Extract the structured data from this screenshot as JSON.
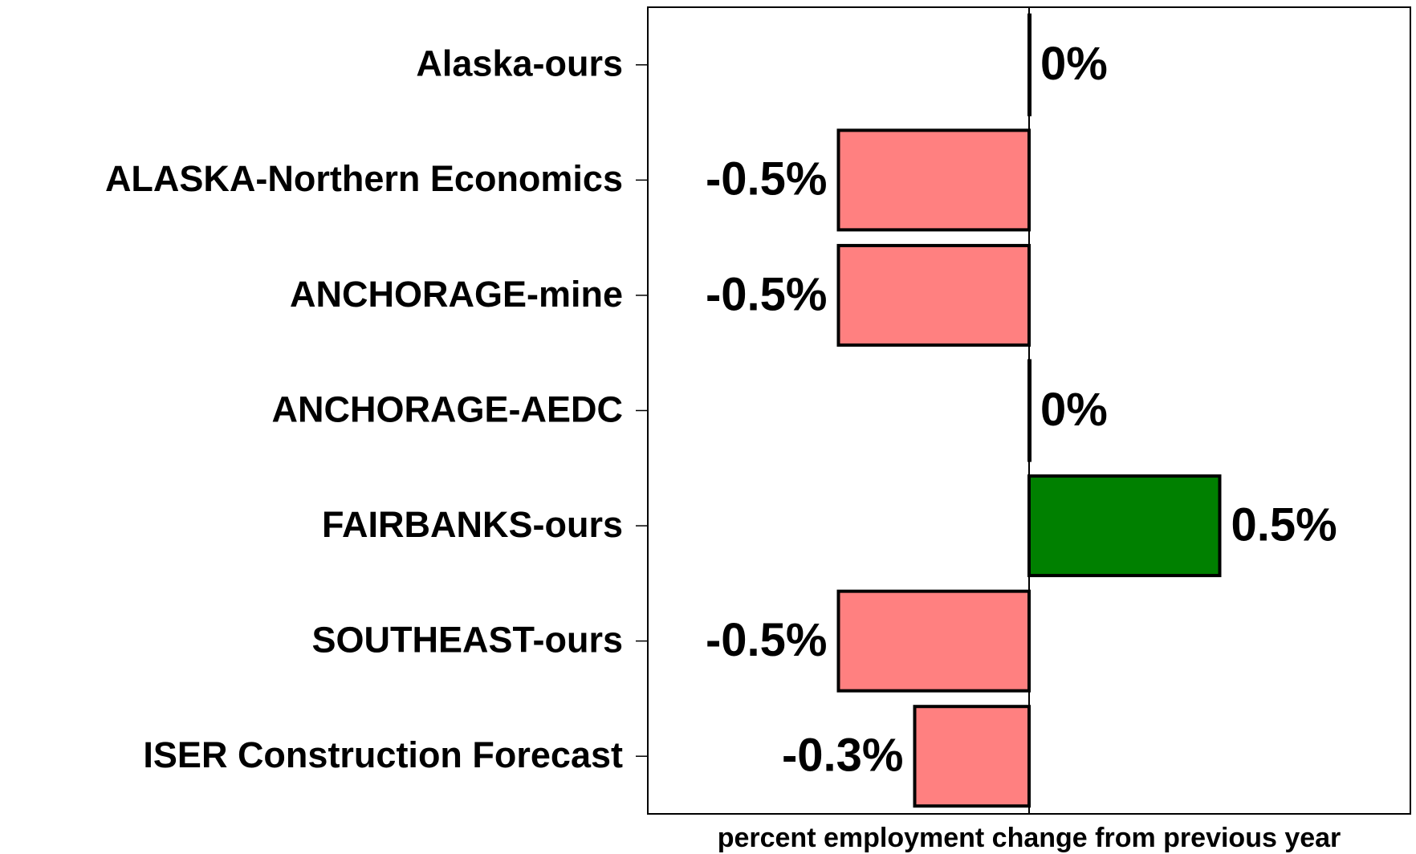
{
  "chart_data": {
    "type": "hbar",
    "categories": [
      "Alaska-ours",
      "ALASKA-Northern Economics",
      "ANCHORAGE-mine",
      "ANCHORAGE-AEDC",
      "FAIRBANKS-ours",
      "SOUTHEAST-ours",
      "ISER Construction Forecast"
    ],
    "values": [
      0,
      -0.5,
      -0.5,
      0,
      0.5,
      -0.5,
      -0.3
    ],
    "value_labels": [
      "0%",
      "-0.5%",
      "-0.5%",
      "0%",
      "0.5%",
      "-0.5%",
      "-0.3%"
    ],
    "colors": [
      "#ff8080",
      "#ff8080",
      "#ff8080",
      "#ff8080",
      "#008000",
      "#ff8080",
      "#ff8080"
    ],
    "xlabel": "percent employment change from previous year",
    "xlim": [
      -1,
      1
    ]
  }
}
